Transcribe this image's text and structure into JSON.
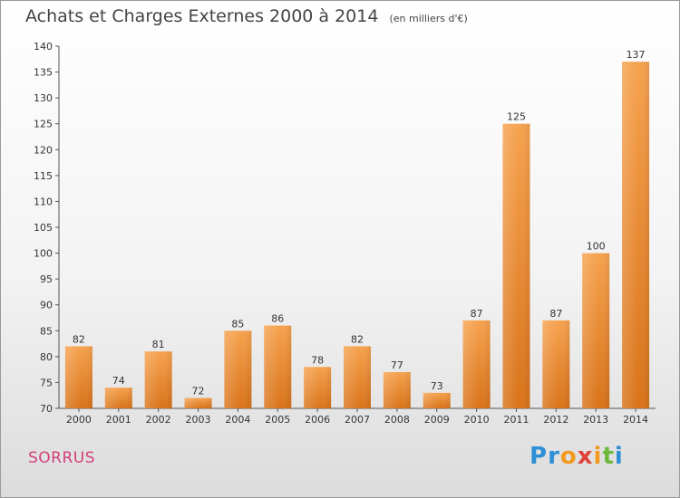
{
  "header": {
    "title": "Achats et Charges Externes 2000 à 2014",
    "unit": "(en milliers d'€)"
  },
  "footer": {
    "commune": "SORRUS",
    "logo": "Proxiti"
  },
  "colors": {
    "bar_light": "#f6a24e",
    "bar_dark": "#d9731a",
    "axis": "#555555",
    "commune": "#d4407a"
  },
  "chart_data": {
    "type": "bar",
    "title": "Achats et Charges Externes 2000 à 2014",
    "subtitle": "(en milliers d'€)",
    "xlabel": "",
    "ylabel": "",
    "categories": [
      "2000",
      "2001",
      "2002",
      "2003",
      "2004",
      "2005",
      "2006",
      "2007",
      "2008",
      "2009",
      "2010",
      "2011",
      "2012",
      "2013",
      "2014"
    ],
    "values": [
      82,
      74,
      81,
      72,
      85,
      86,
      78,
      82,
      77,
      73,
      87,
      125,
      87,
      100,
      137
    ],
    "ylim": [
      70,
      140
    ],
    "yticks": [
      70,
      75,
      80,
      85,
      90,
      95,
      100,
      105,
      110,
      115,
      120,
      125,
      130,
      135,
      140
    ],
    "grid": false,
    "legend": "none"
  }
}
